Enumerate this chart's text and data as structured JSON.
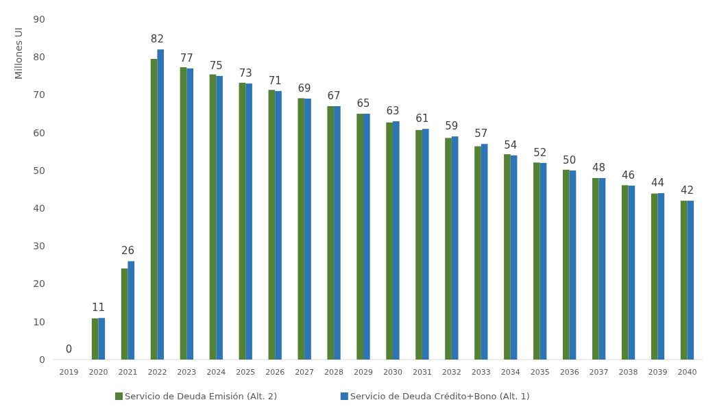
{
  "chart_data": {
    "type": "bar",
    "ylabel": "Millones UI",
    "categories": [
      "2019",
      "2020",
      "2021",
      "2022",
      "2023",
      "2024",
      "2025",
      "2026",
      "2027",
      "2028",
      "2029",
      "2030",
      "2031",
      "2032",
      "2033",
      "2034",
      "2035",
      "2036",
      "2037",
      "2038",
      "2039",
      "2040"
    ],
    "series": [
      {
        "name": "Servicio de Deuda Emisión (Alt. 2)",
        "color": "#548235",
        "values": [
          0,
          10.9,
          24.1,
          79.5,
          77.3,
          75.4,
          73.2,
          71.3,
          69.1,
          67.0,
          65.0,
          62.7,
          60.7,
          58.6,
          56.4,
          54.3,
          52.1,
          50.2,
          48.0,
          46.1,
          43.9,
          42.0
        ]
      },
      {
        "name": "Servicio de Deuda Crédito+Bono (Alt. 1)",
        "color": "#2e75b6",
        "values": [
          0,
          11,
          26,
          82,
          77,
          75,
          73,
          71,
          69,
          67,
          65,
          63,
          61,
          59,
          57,
          54,
          52,
          50,
          48,
          46,
          44,
          42
        ],
        "value_labels": [
          "0",
          "11",
          "26",
          "82",
          "77",
          "75",
          "73",
          "71",
          "69",
          "67",
          "65",
          "63",
          "61",
          "59",
          "57",
          "54",
          "52",
          "50",
          "48",
          "46",
          "44",
          "42"
        ]
      }
    ],
    "ylim": [
      0,
      90
    ],
    "yticks": [
      0,
      10,
      20,
      30,
      40,
      50,
      60,
      70,
      80,
      90
    ],
    "grid": false,
    "legend": "bottom"
  }
}
